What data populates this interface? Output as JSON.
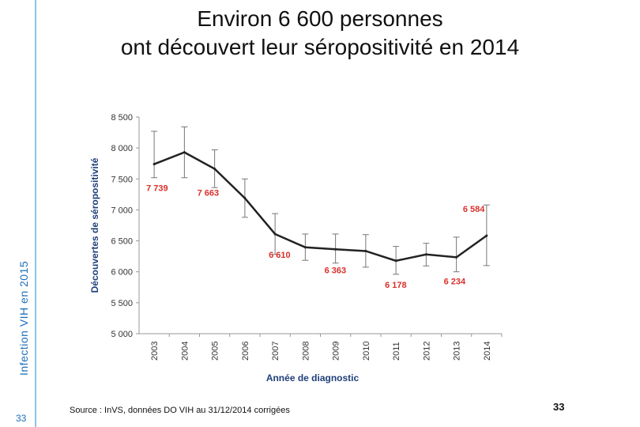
{
  "sidebar": {
    "label": "Infection VIH en 2015",
    "page": "33"
  },
  "header": {
    "title_line1": "Environ 6 600 personnes",
    "title_line2": "ont découvert leur séropositivité en 2014"
  },
  "footer": {
    "source": "Source : InVS, données DO VIH au 31/12/2014 corrigées",
    "page": "33"
  },
  "colors": {
    "accent": "#1f6fb8",
    "line": "#222222",
    "labels": "#d9302b",
    "axis_title": "#1f3f7a"
  },
  "chart_data": {
    "type": "line",
    "title": "",
    "xlabel": "Année de diagnostic",
    "ylabel": "Découvertes de séropositivité",
    "x": [
      "2003",
      "2004",
      "2005",
      "2006",
      "2007",
      "2008",
      "2009",
      "2010",
      "2011",
      "2012",
      "2013",
      "2014"
    ],
    "series": [
      {
        "values": [
          7739,
          7930,
          7663,
          7190,
          6610,
          6395,
          6363,
          6335,
          6178,
          6280,
          6234,
          6584
        ],
        "ci_low": [
          7520,
          7520,
          7360,
          6880,
          6280,
          6185,
          6140,
          6075,
          5960,
          6095,
          6000,
          6100
        ],
        "ci_high": [
          8270,
          8340,
          7970,
          7500,
          6940,
          6610,
          6610,
          6600,
          6410,
          6460,
          6560,
          7080
        ]
      }
    ],
    "data_labels": [
      {
        "x": "2003",
        "text": "7 739"
      },
      {
        "x": "2005",
        "text": "7 663"
      },
      {
        "x": "2007",
        "text": "6 610"
      },
      {
        "x": "2009",
        "text": "6 363"
      },
      {
        "x": "2011",
        "text": "6 178"
      },
      {
        "x": "2013",
        "text": "6 234"
      },
      {
        "x": "2014",
        "text": "6 584"
      }
    ],
    "yticks": [
      "8 500",
      "8 000",
      "7 500",
      "7 000",
      "6 500",
      "6 000",
      "5 500",
      "5 000"
    ],
    "ytick_values": [
      8500,
      8000,
      7500,
      7000,
      6500,
      6000,
      5500,
      5000
    ],
    "ylim": [
      5000,
      8500
    ],
    "grid": false
  }
}
